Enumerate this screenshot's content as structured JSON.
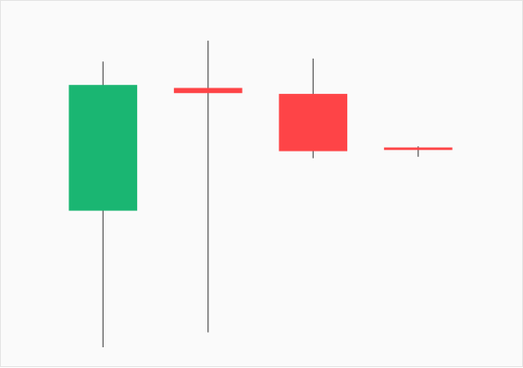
{
  "chart_data": {
    "type": "candlestick",
    "title": "",
    "xlabel": "",
    "ylabel": "",
    "ylim": [
      0,
      100
    ],
    "grid": false,
    "legend": "none",
    "colors": {
      "up": "#1ab672",
      "down": "#fe4447",
      "wick": "#555555",
      "background": "#fafafa"
    },
    "candles": [
      {
        "open": 46,
        "high": 96,
        "low": 0,
        "close": 88
      },
      {
        "open": 87,
        "high": 103,
        "low": 5,
        "close": 85.5
      },
      {
        "open": 85,
        "high": 97,
        "low": 63.5,
        "close": 66
      },
      {
        "open": 67,
        "high": 67.5,
        "low": 64,
        "close": 66.5
      }
    ]
  }
}
